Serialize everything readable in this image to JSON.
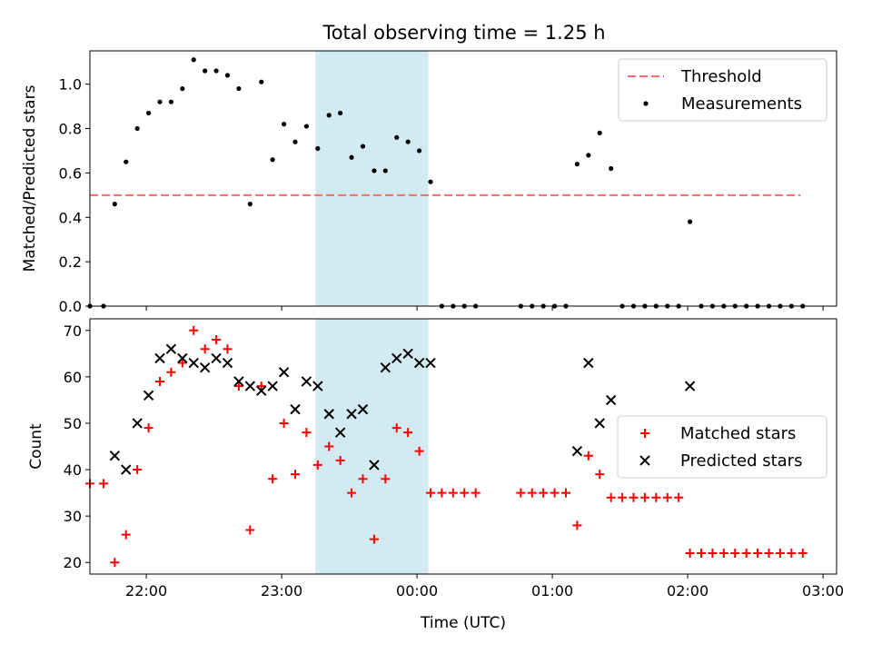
{
  "figure": {
    "title": "Total observing time = 1.25 h",
    "colors": {
      "background": "#ffffff",
      "shade": "#add8e6",
      "threshold": "#ff6b6b",
      "measurement": "#000000",
      "matched": "#ff0000",
      "predicted": "#000000"
    }
  },
  "chart_data": [
    {
      "type": "scatter",
      "ylabel": "Matched/Predicted stars",
      "xlabel": "",
      "ylim": [
        0,
        1.15
      ],
      "xlim": [
        "21:35",
        "03:06"
      ],
      "yticks": [
        0.0,
        0.2,
        0.4,
        0.6,
        0.8,
        1.0
      ],
      "ytick_labels": [
        "0.0",
        "0.2",
        "0.4",
        "0.6",
        "0.8",
        "1.0"
      ],
      "xticks": [
        "22:00",
        "23:00",
        "00:00",
        "01:00",
        "02:00",
        "03:00"
      ],
      "show_xtick_labels": false,
      "shaded_region": {
        "x_start": "23:15",
        "x_end": "00:05"
      },
      "legend": {
        "placement": "top-right",
        "entries": [
          {
            "label": "Threshold",
            "kind": "dashed-line"
          },
          {
            "label": "Measurements",
            "kind": "dot"
          }
        ]
      },
      "threshold": {
        "name": "Threshold",
        "y": 0.5,
        "x_start": "21:35",
        "x_end": "02:50"
      },
      "series": [
        {
          "name": "Measurements",
          "x": [
            "21:35",
            "21:41",
            "21:46",
            "21:51",
            "21:56",
            "22:01",
            "22:06",
            "22:11",
            "22:16",
            "22:21",
            "22:26",
            "22:31",
            "22:36",
            "22:41",
            "22:46",
            "22:51",
            "22:56",
            "23:01",
            "23:06",
            "23:11",
            "23:16",
            "23:21",
            "23:26",
            "23:31",
            "23:36",
            "23:41",
            "23:46",
            "23:51",
            "23:56",
            "00:01",
            "00:06",
            "00:11",
            "00:16",
            "00:21",
            "00:26",
            "00:46",
            "00:51",
            "00:56",
            "01:01",
            "01:06",
            "01:11",
            "01:16",
            "01:21",
            "01:26",
            "01:31",
            "01:36",
            "01:41",
            "01:46",
            "01:51",
            "01:56",
            "02:01",
            "02:06",
            "02:11",
            "02:16",
            "02:21",
            "02:26",
            "02:31",
            "02:36",
            "02:41",
            "02:46",
            "02:51"
          ],
          "y": [
            0,
            0,
            0.46,
            0.65,
            0.8,
            0.87,
            0.92,
            0.92,
            0.98,
            1.11,
            1.06,
            1.06,
            1.04,
            0.98,
            0.46,
            1.01,
            0.66,
            0.82,
            0.74,
            0.81,
            0.71,
            0.86,
            0.87,
            0.67,
            0.72,
            0.61,
            0.61,
            0.76,
            0.74,
            0.7,
            0.56,
            0,
            0,
            0,
            0,
            0,
            0,
            0,
            0,
            0,
            0.64,
            0.68,
            0.78,
            0.62,
            0,
            0,
            0,
            0,
            0,
            0,
            0.38,
            0,
            0,
            0,
            0,
            0,
            0,
            0,
            0,
            0,
            0
          ]
        }
      ]
    },
    {
      "type": "scatter",
      "ylabel": "Count",
      "xlabel": "Time (UTC)",
      "ylim": [
        17.5,
        72.5
      ],
      "xlim": [
        "21:35",
        "03:06"
      ],
      "yticks": [
        20,
        30,
        40,
        50,
        60,
        70
      ],
      "ytick_labels": [
        "20",
        "30",
        "40",
        "50",
        "60",
        "70"
      ],
      "xticks": [
        "22:00",
        "23:00",
        "00:00",
        "01:00",
        "02:00",
        "03:00"
      ],
      "xtick_labels": [
        "22:00",
        "23:00",
        "00:00",
        "01:00",
        "02:00",
        "03:00"
      ],
      "shaded_region": {
        "x_start": "23:15",
        "x_end": "00:05"
      },
      "legend": {
        "placement": "center-right",
        "entries": [
          {
            "label": "Matched stars",
            "kind": "plus"
          },
          {
            "label": "Predicted stars",
            "kind": "cross"
          }
        ]
      },
      "series": [
        {
          "name": "Matched stars",
          "marker": "plus",
          "x": [
            "21:35",
            "21:41",
            "21:46",
            "21:51",
            "21:56",
            "22:01",
            "22:06",
            "22:11",
            "22:16",
            "22:21",
            "22:26",
            "22:31",
            "22:36",
            "22:41",
            "22:46",
            "22:51",
            "22:56",
            "23:01",
            "23:06",
            "23:11",
            "23:16",
            "23:21",
            "23:26",
            "23:31",
            "23:36",
            "23:41",
            "23:46",
            "23:51",
            "23:56",
            "00:01",
            "00:06",
            "00:11",
            "00:16",
            "00:21",
            "00:26",
            "00:46",
            "00:51",
            "00:56",
            "01:01",
            "01:06",
            "01:11",
            "01:16",
            "01:21",
            "01:26",
            "01:31",
            "01:36",
            "01:41",
            "01:46",
            "01:51",
            "01:56",
            "02:01",
            "02:06",
            "02:11",
            "02:16",
            "02:21",
            "02:26",
            "02:31",
            "02:36",
            "02:41",
            "02:46",
            "02:51"
          ],
          "y": [
            37,
            37,
            20,
            26,
            40,
            49,
            59,
            61,
            63,
            70,
            66,
            68,
            66,
            58,
            27,
            58,
            38,
            50,
            39,
            48,
            41,
            45,
            42,
            35,
            38,
            25,
            38,
            49,
            48,
            44,
            35,
            35,
            35,
            35,
            35,
            35,
            35,
            35,
            35,
            35,
            28,
            43,
            39,
            34,
            34,
            34,
            34,
            34,
            34,
            34,
            22,
            22,
            22,
            22,
            22,
            22,
            22,
            22,
            22,
            22,
            22
          ]
        },
        {
          "name": "Predicted stars",
          "marker": "cross",
          "x": [
            "21:46",
            "21:51",
            "21:56",
            "22:01",
            "22:06",
            "22:11",
            "22:16",
            "22:21",
            "22:26",
            "22:31",
            "22:36",
            "22:41",
            "22:46",
            "22:51",
            "22:56",
            "23:01",
            "23:06",
            "23:11",
            "23:16",
            "23:21",
            "23:26",
            "23:31",
            "23:36",
            "23:41",
            "23:46",
            "23:51",
            "23:56",
            "00:01",
            "00:06",
            "01:11",
            "01:16",
            "01:21",
            "01:26",
            "02:01"
          ],
          "y": [
            43,
            40,
            50,
            56,
            64,
            66,
            64,
            63,
            62,
            64,
            63,
            59,
            58,
            57,
            58,
            61,
            53,
            59,
            58,
            52,
            48,
            52,
            53,
            41,
            62,
            64,
            65,
            63,
            63,
            44,
            63,
            50,
            55,
            58
          ]
        }
      ]
    }
  ]
}
